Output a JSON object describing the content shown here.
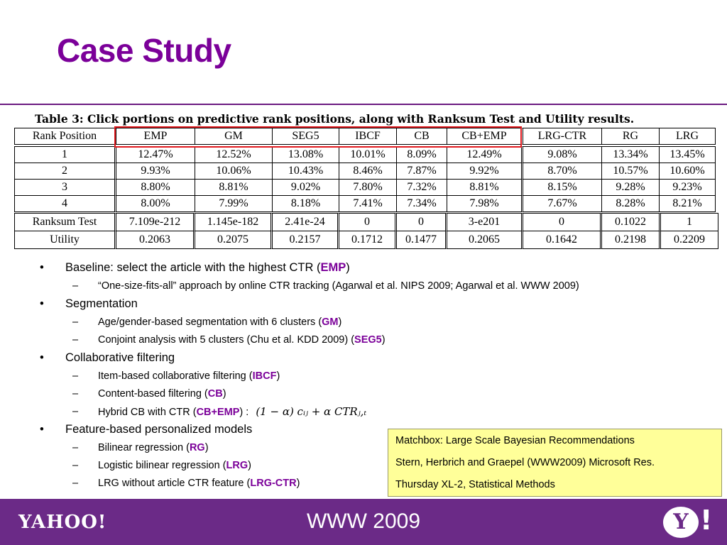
{
  "slide": {
    "title": "Case Study",
    "caption_label": "Table 3:",
    "caption_text": " Click portions on predictive rank positions, along with Ranksum Test and Utility results."
  },
  "table": {
    "header": [
      "Rank Position",
      "EMP",
      "GM",
      "SEG5",
      "IBCF",
      "CB",
      "CB+EMP",
      "LRG-CTR",
      "RG",
      "LRG"
    ],
    "rows": [
      [
        "1",
        "12.47%",
        "12.52%",
        "13.08%",
        "10.01%",
        "8.09%",
        "12.49%",
        "9.08%",
        "13.34%",
        "13.45%"
      ],
      [
        "2",
        "9.93%",
        "10.06%",
        "10.43%",
        "8.46%",
        "7.87%",
        "9.92%",
        "8.70%",
        "10.57%",
        "10.60%"
      ],
      [
        "3",
        "8.80%",
        "8.81%",
        "9.02%",
        "7.80%",
        "7.32%",
        "8.81%",
        "8.15%",
        "9.28%",
        "9.23%"
      ],
      [
        "4",
        "8.00%",
        "7.99%",
        "8.18%",
        "7.41%",
        "7.34%",
        "7.98%",
        "7.67%",
        "8.28%",
        "8.21%"
      ]
    ],
    "stats": [
      [
        "Ranksum Test",
        "7.109e-212",
        "1.145e-182",
        "2.41e-24",
        "0",
        "0",
        "3-e201",
        "0",
        "0.1022",
        "1"
      ],
      [
        "Utility",
        "0.2063",
        "0.2075",
        "0.2157",
        "0.1712",
        "0.1477",
        "0.2065",
        "0.1642",
        "0.2198",
        "0.2209"
      ]
    ]
  },
  "bullets": {
    "bullet_char": "•",
    "dash_char": "–",
    "b1_pre": "Baseline: select the article with the highest CTR (",
    "b1_kw": "EMP",
    "b1_post": ")",
    "b1a": "“One-size-fits-all” approach by online CTR tracking (Agarwal et al. NIPS 2009; Agarwal et al. WWW 2009)",
    "b2": "Segmentation",
    "b2a_pre": "Age/gender-based segmentation with 6 clusters (",
    "b2a_kw": "GM",
    "b2a_post": ")",
    "b2b_pre": "Conjoint analysis with 5 clusters (Chu et al. KDD 2009) (",
    "b2b_kw": "SEG5",
    "b2b_post": ")",
    "b3": "Collaborative filtering",
    "b3a_pre": "Item-based collaborative filtering (",
    "b3a_kw": "IBCF",
    "b3a_post": ")",
    "b3b_pre": "Content-based filtering (",
    "b3b_kw": "CB",
    "b3b_post": ")",
    "b3c_pre": "Hybrid CB with CTR (",
    "b3c_kw": "CB+EMP",
    "b3c_post": ") :",
    "formula": "(1 − α) cᵢⱼ + α CTRⱼ,ₜ",
    "b4": "Feature-based personalized models",
    "b4a_pre": "Bilinear regression (",
    "b4a_kw": "RG",
    "b4a_post": ")",
    "b4b_pre": "Logistic bilinear regression (",
    "b4b_kw": "LRG",
    "b4b_post": ")",
    "b4c_pre": "LRG without article CTR feature (",
    "b4c_kw": "LRG-CTR",
    "b4c_post": ")"
  },
  "matchbox": {
    "line1": "Matchbox: Large Scale Bayesian Recommendations",
    "line2": "Stern, Herbrich and Graepel (WWW2009)  Microsoft Res.",
    "line3": "Thursday XL-2, Statistical Methods"
  },
  "footer": {
    "logo_text": "YAHOO!",
    "event": "WWW 2009",
    "logo_y": "Y",
    "logo_bang": "!"
  },
  "colors": {
    "accent": "#7b0099",
    "footer_bg": "#6b2a87",
    "highlight_box": "#e0191e",
    "note_bg": "#ffff99"
  }
}
